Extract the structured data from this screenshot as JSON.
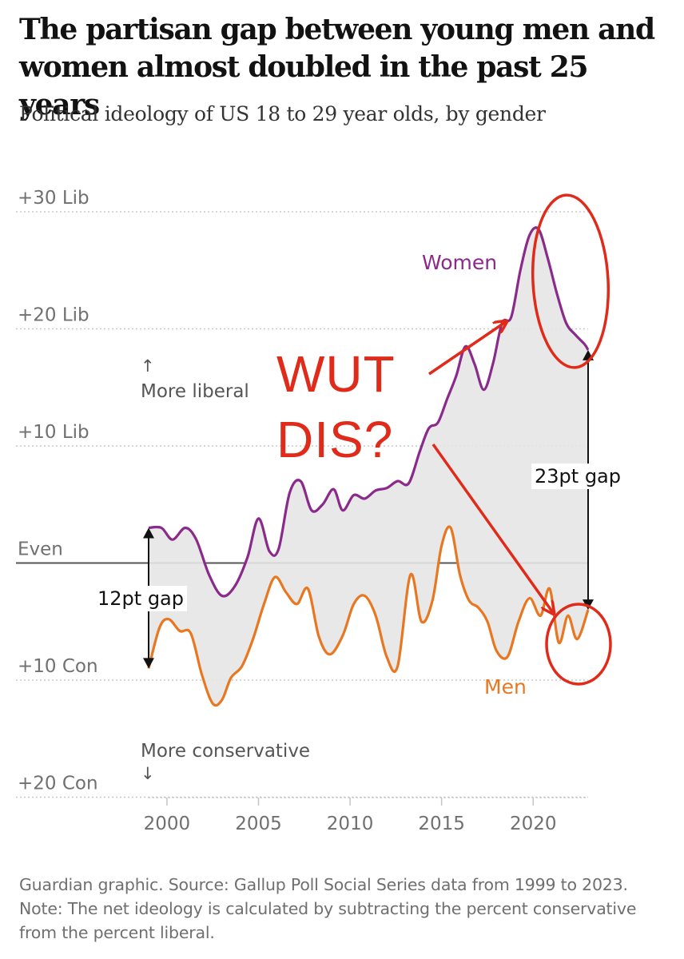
{
  "header": {
    "title": "The partisan gap between young men and women almost doubled in the past 25 years",
    "subtitle": "Political ideology of US 18 to 29 year olds, by gender"
  },
  "footer": {
    "note": "Guardian graphic. Source: Gallup Poll Social Series data from 1999 to 2023. Note: The net ideology is calculated by subtracting the percent conservative from the percent liberal."
  },
  "chart_data": {
    "type": "line",
    "title": "The partisan gap between young men and women almost doubled in the past 25 years",
    "subtitle": "Political ideology of US 18 to 29 year olds, by gender",
    "xlabel": "",
    "ylabel": "",
    "xlim": [
      1999,
      2023
    ],
    "ylim": [
      -20,
      30
    ],
    "x_ticks": [
      2000,
      2005,
      2010,
      2015,
      2020
    ],
    "x_tick_labels": [
      "2000",
      "2005",
      "2010",
      "2015",
      "2020"
    ],
    "y_ticks": [
      30,
      20,
      10,
      0,
      -10,
      -20
    ],
    "y_tick_labels": [
      "+30 Lib",
      "+20 Lib",
      "+10 Lib",
      "Even",
      "+10 Con",
      "+20 Con"
    ],
    "grid": true,
    "fill_between": true,
    "direction_labels": {
      "up": "More liberal",
      "up_arrow": "↑",
      "down": "More conservative",
      "down_arrow": "↓"
    },
    "series": [
      {
        "name": "Women",
        "color": "#8a2a8a",
        "x": [
          1999,
          1999.7,
          2000.3,
          2001,
          2001.6,
          2002.3,
          2003,
          2003.7,
          2004.4,
          2005,
          2005.6,
          2006.1,
          2006.7,
          2007.3,
          2007.9,
          2008.5,
          2009.1,
          2009.6,
          2010.2,
          2010.8,
          2011.4,
          2012,
          2012.6,
          2013.2,
          2013.8,
          2014.3,
          2014.8,
          2015.3,
          2015.8,
          2016.3,
          2016.8,
          2017.3,
          2017.8,
          2018.3,
          2018.8,
          2019.3,
          2019.8,
          2020.3,
          2020.8,
          2021.3,
          2021.8,
          2022.3,
          2022.8,
          2023
        ],
        "y": [
          3,
          3,
          2,
          3,
          2,
          -1,
          -2.8,
          -2,
          0.5,
          3.8,
          1,
          1.2,
          6,
          7,
          4.5,
          5,
          6.3,
          4.5,
          5.8,
          5.5,
          6.2,
          6.4,
          7,
          6.8,
          9.5,
          11.5,
          12,
          14,
          16,
          18.5,
          17,
          14.8,
          17,
          20.5,
          21,
          25,
          28,
          28.5,
          26,
          23,
          20.5,
          19.5,
          18.7,
          18.2
        ]
      },
      {
        "name": "Men",
        "color": "#e87722",
        "x": [
          1999,
          1999.6,
          2000.1,
          2000.7,
          2001.3,
          2001.9,
          2002.5,
          2003,
          2003.5,
          2004.1,
          2004.7,
          2005.3,
          2005.9,
          2006.5,
          2007.1,
          2007.7,
          2008.3,
          2008.9,
          2009.6,
          2010.2,
          2010.8,
          2011.4,
          2012,
          2012.6,
          2013.3,
          2013.9,
          2014.5,
          2015,
          2015.5,
          2016,
          2016.5,
          2017,
          2017.5,
          2018,
          2018.6,
          2019.2,
          2019.8,
          2020.4,
          2020.9,
          2021.4,
          2021.9,
          2022.4,
          2023
        ],
        "y": [
          -9,
          -5.5,
          -4.8,
          -5.8,
          -6,
          -9.5,
          -12,
          -11.7,
          -9.8,
          -8.8,
          -6.5,
          -3.5,
          -1.2,
          -2.5,
          -3.5,
          -2.2,
          -6.3,
          -7.8,
          -6.2,
          -3.5,
          -2.8,
          -4.5,
          -8,
          -8.8,
          -1,
          -5,
          -3.2,
          1.5,
          3,
          -1,
          -3.2,
          -3.8,
          -5,
          -7.5,
          -8,
          -5,
          -3,
          -4.5,
          -2.2,
          -6.8,
          -4.5,
          -6.5,
          -4
        ]
      }
    ],
    "annotations": [
      {
        "text": "12pt gap",
        "x": 1999,
        "from": 3,
        "to": -9
      },
      {
        "text": "23pt gap",
        "x": 2023,
        "from": 18.2,
        "to": -4
      },
      {
        "text": "WUT",
        "type": "handwritten-markup",
        "color": "#e02b1a"
      },
      {
        "text": "DIS?",
        "type": "handwritten-markup",
        "color": "#e02b1a"
      }
    ]
  }
}
